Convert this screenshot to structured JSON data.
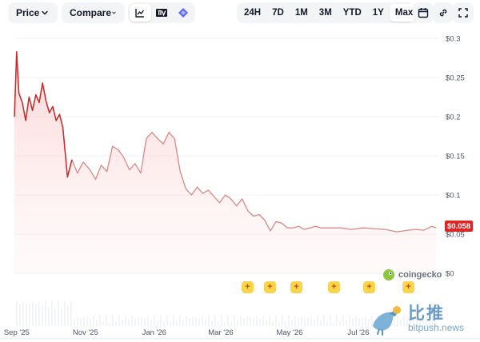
{
  "toolbar": {
    "price_label": "Price",
    "compare_label": "Compare",
    "chart_types": [
      "line-chart-icon",
      "tradingview-icon",
      "diamond-icon"
    ],
    "ranges": [
      "24H",
      "7D",
      "1M",
      "3M",
      "YTD",
      "1Y",
      "Max"
    ],
    "active_range": "Max"
  },
  "price_tag": "$0.058",
  "brand": "coingecko",
  "watermark": {
    "cn": "比推",
    "en": "bitpush.news"
  },
  "colors": {
    "line": "#c94444",
    "fill": "#fde2e2",
    "tag": "#dc2626",
    "event": "#fcd34d"
  },
  "chart_data": {
    "type": "area",
    "y_ticks": [
      "$0.3",
      "$0.25",
      "$0.2",
      "$0.15",
      "$0.1",
      "$0.05",
      "$0"
    ],
    "y_tick_values": [
      0.3,
      0.25,
      0.2,
      0.15,
      0.1,
      0.05,
      0
    ],
    "ylim": [
      0,
      0.3
    ],
    "x_ticks": [
      "Sep '25",
      "Nov '25",
      "Jan '26",
      "Mar '26",
      "May '26",
      "Jul '26"
    ],
    "x_tick_dates": [
      "2025-09-01",
      "2025-11-01",
      "2026-01-01",
      "2026-03-01",
      "2026-05-01",
      "2026-07-01"
    ],
    "xlim": [
      "2025-08-30",
      "2026-09-10"
    ],
    "series": [
      {
        "x": [
          "2025-08-30",
          "2025-09-01",
          "2025-09-03",
          "2025-09-06",
          "2025-09-09",
          "2025-09-12",
          "2025-09-15",
          "2025-09-18",
          "2025-09-21",
          "2025-09-24",
          "2025-09-27",
          "2025-09-30",
          "2025-10-03",
          "2025-10-06",
          "2025-10-09",
          "2025-10-12",
          "2025-10-16",
          "2025-10-20",
          "2025-10-25",
          "2025-10-30",
          "2025-11-05",
          "2025-11-10",
          "2025-11-15",
          "2025-11-20",
          "2025-11-25",
          "2025-11-30",
          "2025-12-05",
          "2025-12-10",
          "2025-12-15",
          "2025-12-20",
          "2025-12-25",
          "2025-12-30",
          "2026-01-04",
          "2026-01-09",
          "2026-01-14",
          "2026-01-19",
          "2026-01-24",
          "2026-01-29",
          "2026-02-03",
          "2026-02-08",
          "2026-02-13",
          "2026-02-18",
          "2026-02-23",
          "2026-02-28",
          "2026-03-05",
          "2026-03-10",
          "2026-03-15",
          "2026-03-20",
          "2026-03-25",
          "2026-03-30",
          "2026-04-04",
          "2026-04-09",
          "2026-04-14",
          "2026-04-19",
          "2026-04-24",
          "2026-04-29",
          "2026-05-04",
          "2026-05-09",
          "2026-05-14",
          "2026-05-19",
          "2026-05-24",
          "2026-05-29",
          "2026-06-05",
          "2026-06-15",
          "2026-06-25",
          "2026-07-05",
          "2026-07-15",
          "2026-07-25",
          "2026-08-04",
          "2026-08-14",
          "2026-08-21",
          "2026-08-28",
          "2026-09-04",
          "2026-09-08"
        ],
        "y": [
          0.2,
          0.283,
          0.23,
          0.218,
          0.195,
          0.225,
          0.208,
          0.228,
          0.218,
          0.243,
          0.22,
          0.205,
          0.213,
          0.195,
          0.203,
          0.186,
          0.123,
          0.145,
          0.128,
          0.142,
          0.132,
          0.12,
          0.138,
          0.13,
          0.162,
          0.158,
          0.148,
          0.132,
          0.14,
          0.128,
          0.172,
          0.18,
          0.172,
          0.165,
          0.18,
          0.172,
          0.13,
          0.108,
          0.1,
          0.11,
          0.102,
          0.106,
          0.098,
          0.09,
          0.1,
          0.095,
          0.086,
          0.095,
          0.08,
          0.073,
          0.075,
          0.068,
          0.054,
          0.066,
          0.064,
          0.058,
          0.058,
          0.06,
          0.056,
          0.058,
          0.06,
          0.058,
          0.058,
          0.058,
          0.056,
          0.058,
          0.057,
          0.056,
          0.053,
          0.055,
          0.056,
          0.055,
          0.06,
          0.058
        ]
      }
    ]
  }
}
